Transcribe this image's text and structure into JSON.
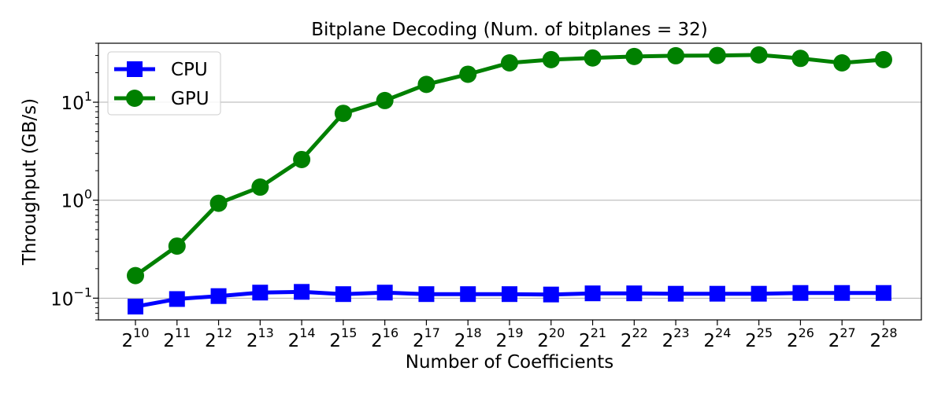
{
  "chart_data": {
    "type": "line",
    "title": "Bitplane Decoding (Num. of bitplanes = 32)",
    "xlabel": "Number of Coefficients",
    "ylabel": "Throughput (GB/s)",
    "x_base": "2",
    "x_exponents": [
      "10",
      "11",
      "12",
      "13",
      "14",
      "15",
      "16",
      "17",
      "18",
      "19",
      "20",
      "21",
      "22",
      "23",
      "24",
      "25",
      "26",
      "27",
      "28"
    ],
    "y_scale": "log",
    "ylim": [
      0.06,
      40
    ],
    "y_ticks": [
      0.1,
      1,
      10
    ],
    "y_tick_base": "10",
    "y_tick_exponents": [
      "−1",
      "0",
      "1"
    ],
    "grid": "y",
    "legend_position": "top-left",
    "series": [
      {
        "name": "CPU",
        "color": "#0000ff",
        "marker": "square",
        "values": [
          0.082,
          0.098,
          0.105,
          0.114,
          0.116,
          0.11,
          0.114,
          0.11,
          0.11,
          0.11,
          0.109,
          0.112,
          0.112,
          0.111,
          0.111,
          0.111,
          0.113,
          0.113,
          0.113
        ]
      },
      {
        "name": "GPU",
        "color": "#008000",
        "marker": "circle",
        "values": [
          0.17,
          0.34,
          0.93,
          1.36,
          2.6,
          7.7,
          10.4,
          15.2,
          19.3,
          25.2,
          27.2,
          28.3,
          29.3,
          29.8,
          30.0,
          30.4,
          28.0,
          25.2,
          27.2
        ]
      }
    ]
  }
}
